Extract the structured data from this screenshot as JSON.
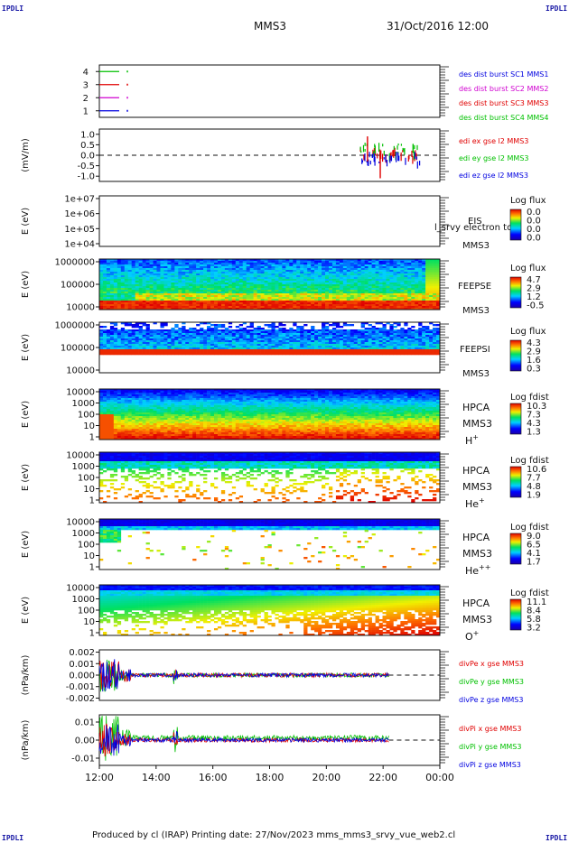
{
  "corner_label": "IPDLI",
  "header": {
    "spacecraft": "MMS3",
    "datetime": "31/Oct/2016 12:00"
  },
  "footer": {
    "text": "Produced by cl (IRAP)   Printing date: 27/Nov/2023   mms_mms3_srvy_vue_web2.cl"
  },
  "colors": {
    "red": "#e00000",
    "green": "#00c000",
    "blue": "#0000e0",
    "magenta": "#d000d0",
    "darkred": "#c00000"
  },
  "chart_data": [
    {
      "id": "burst",
      "type": "line",
      "ylim": [
        0.5,
        4.5
      ],
      "yticks": [
        "1",
        "2",
        "3",
        "4"
      ],
      "series": [
        {
          "name": "des dist burst SC1 MMS1",
          "color": "#0000e0",
          "y": 1
        },
        {
          "name": "des dist burst SC2 MMS2",
          "color": "#d000d0",
          "y": 2
        },
        {
          "name": "des dist burst SC3 MMS3",
          "color": "#e00000",
          "y": 3
        },
        {
          "name": "des dist burst SC4 MMS4",
          "color": "#00c000",
          "y": 4
        }
      ],
      "x_range_hours": [
        12,
        12.9
      ]
    },
    {
      "id": "edi",
      "type": "line",
      "ylabel": "(mV/m)",
      "ylim": [
        -1.25,
        1.25
      ],
      "yticks": [
        "1.0",
        "0.5",
        "0.0",
        "-0.5",
        "-1.0"
      ],
      "ytick_values": [
        1.0,
        0.5,
        0.0,
        -0.5,
        -1.0
      ],
      "series": [
        {
          "name": "edi ex gse l2 MMS3",
          "color": "#e00000"
        },
        {
          "name": "edi ey gse l2 MMS3",
          "color": "#00c000"
        },
        {
          "name": "edi ez gse l2 MMS3",
          "color": "#0000e0"
        }
      ],
      "x_range_hours": [
        21.2,
        23.3
      ]
    },
    {
      "id": "eis",
      "type": "heatmap",
      "ylabel": "E (eV)",
      "yticks": [
        "1e+07",
        "1e+06",
        "1e+05",
        "1e+04"
      ],
      "instrument": [
        "EIS"
      ],
      "spacecraft": "MMS3",
      "overlay_text": "l_srvy electron to",
      "colorbar_title": "Log flux",
      "colorbar_ticks": [
        "0.0",
        "0.0",
        "0.0",
        "0.0"
      ]
    },
    {
      "id": "feepse",
      "type": "heatmap",
      "ylabel": "E (eV)",
      "yticks": [
        "1000000",
        "100000",
        "10000"
      ],
      "instrument": [
        "FEEPSE"
      ],
      "spacecraft": "MMS3",
      "colorbar_title": "Log flux",
      "colorbar_ticks": [
        "4.7",
        "2.9",
        "1.2",
        "-0.5"
      ]
    },
    {
      "id": "feepsi",
      "type": "heatmap",
      "ylabel": "E (eV)",
      "yticks": [
        "1000000",
        "100000",
        "10000"
      ],
      "instrument": [
        "FEEPSI"
      ],
      "spacecraft": "MMS3",
      "colorbar_title": "Log flux",
      "colorbar_ticks": [
        "4.3",
        "2.9",
        "1.6",
        "0.3"
      ]
    },
    {
      "id": "hpca_h",
      "type": "heatmap",
      "ylabel": "E (eV)",
      "yticks": [
        "10000",
        "1000",
        "100",
        "10",
        "1"
      ],
      "instrument": [
        "HPCA",
        "MMS3"
      ],
      "species": "H",
      "species_sup": "+",
      "colorbar_title": "Log fdist",
      "colorbar_ticks": [
        "10.3",
        "7.3",
        "4.3",
        "1.3"
      ]
    },
    {
      "id": "hpca_he",
      "type": "heatmap",
      "ylabel": "E (eV)",
      "yticks": [
        "10000",
        "1000",
        "100",
        "10",
        "1"
      ],
      "instrument": [
        "HPCA",
        "MMS3"
      ],
      "species": "He",
      "species_sup": "+",
      "colorbar_title": "Log fdist",
      "colorbar_ticks": [
        "10.6",
        "7.7",
        "4.8",
        "1.9"
      ]
    },
    {
      "id": "hpca_hepp",
      "type": "heatmap",
      "ylabel": "E (eV)",
      "yticks": [
        "10000",
        "1000",
        "100",
        "10",
        "1"
      ],
      "instrument": [
        "HPCA",
        "MMS3"
      ],
      "species": "He",
      "species_sup": "++",
      "colorbar_title": "Log fdist",
      "colorbar_ticks": [
        "9.0",
        "6.5",
        "4.1",
        "1.7"
      ]
    },
    {
      "id": "hpca_o",
      "type": "heatmap",
      "ylabel": "E (eV)",
      "yticks": [
        "10000",
        "1000",
        "100",
        "10",
        "1"
      ],
      "instrument": [
        "HPCA",
        "MMS3"
      ],
      "species": "O",
      "species_sup": "+",
      "colorbar_title": "Log fdist",
      "colorbar_ticks": [
        "11.1",
        "8.4",
        "5.8",
        "3.2"
      ]
    },
    {
      "id": "divpe",
      "type": "line",
      "ylabel": "(nPa/km)",
      "ylim": [
        -0.0022,
        0.0022
      ],
      "yticks": [
        "0.002",
        "0.001",
        "0.000",
        "-0.001",
        "-0.002"
      ],
      "ytick_values": [
        0.002,
        0.001,
        0.0,
        -0.001,
        -0.002
      ],
      "series": [
        {
          "name": "divPe x gse MMS3",
          "color": "#e00000"
        },
        {
          "name": "divPe y gse MMS3",
          "color": "#00c000"
        },
        {
          "name": "divPe z gse MMS3",
          "color": "#0000e0"
        }
      ],
      "x_range_hours": [
        12,
        22.2
      ]
    },
    {
      "id": "divpi",
      "type": "line",
      "ylabel": "(nPa/km)",
      "ylim": [
        -0.014,
        0.014
      ],
      "yticks": [
        "0.01",
        "0.00",
        "-0.01"
      ],
      "ytick_values": [
        0.01,
        0.0,
        -0.01
      ],
      "series": [
        {
          "name": "divPi x gse MMS3",
          "color": "#e00000"
        },
        {
          "name": "divPi y gse MMS3",
          "color": "#00c000"
        },
        {
          "name": "divPi z gse MMS3",
          "color": "#0000e0"
        }
      ],
      "x_range_hours": [
        12,
        22.2
      ]
    }
  ],
  "x_axis": {
    "range_hours": [
      12,
      24
    ],
    "ticks": [
      "12:00",
      "14:00",
      "16:00",
      "18:00",
      "20:00",
      "22:00",
      "00:00"
    ]
  }
}
